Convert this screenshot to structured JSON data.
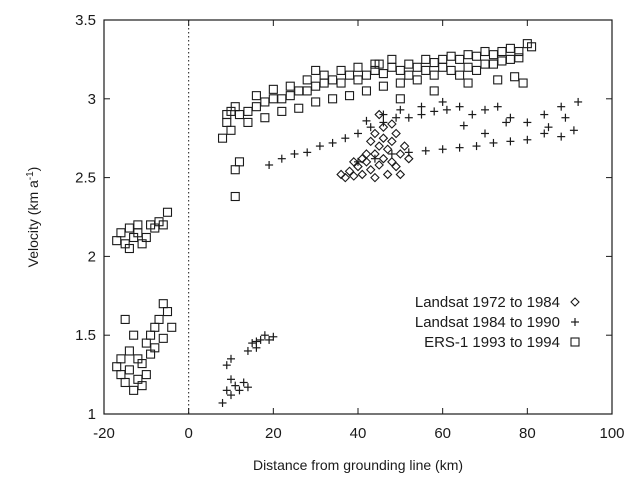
{
  "chart_data": {
    "type": "scatter",
    "xlabel": "Distance from grounding line (km)",
    "ylabel": "Velocity (km a",
    "ylabel_sup": "-1",
    "ylabel_close": ")",
    "xlim": [
      -20,
      100
    ],
    "ylim": [
      1,
      3.5
    ],
    "x_ticks": [
      -20,
      0,
      20,
      40,
      60,
      80,
      100
    ],
    "x_tick_labels": [
      "-20",
      "0",
      "20",
      "40",
      "60",
      "80",
      "100"
    ],
    "y_ticks": [
      1,
      1.5,
      2,
      2.5,
      3,
      3.5
    ],
    "y_tick_labels": [
      "1",
      "1.5",
      "2",
      "2.5",
      "3",
      "3.5"
    ],
    "reference_line_x": 0,
    "legend_position": "lower-right",
    "series": [
      {
        "name": "Landsat 1972 to 1984",
        "marker": "diamond",
        "points": [
          [
            36,
            2.52
          ],
          [
            37,
            2.5
          ],
          [
            38,
            2.54
          ],
          [
            39,
            2.51
          ],
          [
            40,
            2.57
          ],
          [
            41,
            2.52
          ],
          [
            42,
            2.6
          ],
          [
            43,
            2.55
          ],
          [
            44,
            2.65
          ],
          [
            44,
            2.5
          ],
          [
            45,
            2.7
          ],
          [
            45,
            2.58
          ],
          [
            46,
            2.62
          ],
          [
            46,
            2.75
          ],
          [
            47,
            2.52
          ],
          [
            47,
            2.68
          ],
          [
            48,
            2.73
          ],
          [
            48,
            2.6
          ],
          [
            49,
            2.57
          ],
          [
            49,
            2.78
          ],
          [
            50,
            2.65
          ],
          [
            50,
            2.52
          ],
          [
            51,
            2.7
          ],
          [
            52,
            2.62
          ],
          [
            43,
            2.73
          ],
          [
            42,
            2.65
          ],
          [
            41,
            2.62
          ],
          [
            39,
            2.6
          ],
          [
            46,
            2.82
          ],
          [
            45,
            2.9
          ],
          [
            48,
            2.84
          ],
          [
            44,
            2.78
          ]
        ]
      },
      {
        "name": "Landsat 1984 to 1990",
        "marker": "plus",
        "points": [
          [
            8,
            1.07
          ],
          [
            9,
            1.15
          ],
          [
            10,
            1.12
          ],
          [
            11,
            1.18
          ],
          [
            12,
            1.15
          ],
          [
            13,
            1.2
          ],
          [
            14,
            1.17
          ],
          [
            10,
            1.22
          ],
          [
            9,
            1.31
          ],
          [
            10,
            1.35
          ],
          [
            14,
            1.4
          ],
          [
            15,
            1.45
          ],
          [
            16,
            1.42
          ],
          [
            17,
            1.47
          ],
          [
            18,
            1.5
          ],
          [
            19,
            1.47
          ],
          [
            20,
            1.49
          ],
          [
            16,
            1.46
          ],
          [
            19,
            2.58
          ],
          [
            22,
            2.62
          ],
          [
            25,
            2.65
          ],
          [
            28,
            2.66
          ],
          [
            31,
            2.7
          ],
          [
            34,
            2.72
          ],
          [
            37,
            2.75
          ],
          [
            40,
            2.78
          ],
          [
            43,
            2.82
          ],
          [
            46,
            2.85
          ],
          [
            49,
            2.88
          ],
          [
            52,
            2.88
          ],
          [
            55,
            2.9
          ],
          [
            58,
            2.92
          ],
          [
            61,
            2.93
          ],
          [
            64,
            2.95
          ],
          [
            67,
            2.9
          ],
          [
            70,
            2.93
          ],
          [
            73,
            2.95
          ],
          [
            76,
            2.88
          ],
          [
            80,
            2.85
          ],
          [
            84,
            2.9
          ],
          [
            88,
            2.95
          ],
          [
            92,
            2.98
          ],
          [
            40,
            2.6
          ],
          [
            44,
            2.62
          ],
          [
            48,
            2.65
          ],
          [
            52,
            2.66
          ],
          [
            56,
            2.67
          ],
          [
            60,
            2.68
          ],
          [
            64,
            2.69
          ],
          [
            68,
            2.7
          ],
          [
            72,
            2.72
          ],
          [
            76,
            2.73
          ],
          [
            80,
            2.74
          ],
          [
            84,
            2.78
          ],
          [
            88,
            2.76
          ],
          [
            91,
            2.8
          ],
          [
            46,
            2.9
          ],
          [
            50,
            2.93
          ],
          [
            55,
            2.95
          ],
          [
            60,
            2.98
          ],
          [
            65,
            2.83
          ],
          [
            70,
            2.78
          ],
          [
            75,
            2.85
          ],
          [
            85,
            2.82
          ],
          [
            89,
            2.88
          ],
          [
            42,
            2.86
          ]
        ]
      },
      {
        "name": "ERS-1 1993 to 1994",
        "marker": "square",
        "points": [
          [
            -17,
            1.3
          ],
          [
            -16,
            1.25
          ],
          [
            -15,
            1.2
          ],
          [
            -14,
            1.28
          ],
          [
            -13,
            1.15
          ],
          [
            -12,
            1.22
          ],
          [
            -11,
            1.18
          ],
          [
            -10,
            1.25
          ],
          [
            -16,
            1.35
          ],
          [
            -14,
            1.4
          ],
          [
            -12,
            1.35
          ],
          [
            -10,
            1.45
          ],
          [
            -9,
            1.5
          ],
          [
            -8,
            1.55
          ],
          [
            -7,
            1.6
          ],
          [
            -6,
            1.48
          ],
          [
            -5,
            1.65
          ],
          [
            -4,
            1.55
          ],
          [
            -6,
            1.7
          ],
          [
            -8,
            1.42
          ],
          [
            -13,
            1.5
          ],
          [
            -15,
            1.6
          ],
          [
            -11,
            1.32
          ],
          [
            -9,
            1.38
          ],
          [
            -17,
            2.1
          ],
          [
            -16,
            2.15
          ],
          [
            -15,
            2.08
          ],
          [
            -14,
            2.18
          ],
          [
            -13,
            2.12
          ],
          [
            -12,
            2.15
          ],
          [
            -11,
            2.08
          ],
          [
            -10,
            2.12
          ],
          [
            -9,
            2.2
          ],
          [
            -8,
            2.18
          ],
          [
            -7,
            2.22
          ],
          [
            -6,
            2.2
          ],
          [
            -5,
            2.28
          ],
          [
            -14,
            2.05
          ],
          [
            -12,
            2.2
          ],
          [
            8,
            2.75
          ],
          [
            9,
            2.85
          ],
          [
            10,
            2.92
          ],
          [
            10,
            2.8
          ],
          [
            11,
            2.95
          ],
          [
            11,
            2.55
          ],
          [
            12,
            2.6
          ],
          [
            11,
            2.38
          ],
          [
            9,
            2.9
          ],
          [
            12,
            2.9
          ],
          [
            14,
            2.92
          ],
          [
            16,
            2.95
          ],
          [
            18,
            2.98
          ],
          [
            20,
            3.0
          ],
          [
            22,
            3.0
          ],
          [
            24,
            3.02
          ],
          [
            26,
            3.05
          ],
          [
            28,
            3.05
          ],
          [
            30,
            3.08
          ],
          [
            32,
            3.1
          ],
          [
            34,
            3.12
          ],
          [
            36,
            3.1
          ],
          [
            38,
            3.15
          ],
          [
            40,
            3.12
          ],
          [
            42,
            3.15
          ],
          [
            44,
            3.18
          ],
          [
            46,
            3.16
          ],
          [
            48,
            3.2
          ],
          [
            50,
            3.18
          ],
          [
            52,
            3.22
          ],
          [
            54,
            3.2
          ],
          [
            56,
            3.25
          ],
          [
            58,
            3.23
          ],
          [
            60,
            3.25
          ],
          [
            62,
            3.27
          ],
          [
            64,
            3.25
          ],
          [
            66,
            3.28
          ],
          [
            68,
            3.27
          ],
          [
            70,
            3.3
          ],
          [
            72,
            3.28
          ],
          [
            74,
            3.3
          ],
          [
            76,
            3.32
          ],
          [
            78,
            3.3
          ],
          [
            80,
            3.35
          ],
          [
            81,
            3.33
          ],
          [
            14,
            2.85
          ],
          [
            18,
            2.88
          ],
          [
            22,
            2.92
          ],
          [
            26,
            2.94
          ],
          [
            30,
            2.98
          ],
          [
            34,
            3.0
          ],
          [
            38,
            3.02
          ],
          [
            42,
            3.05
          ],
          [
            46,
            3.08
          ],
          [
            50,
            3.1
          ],
          [
            54,
            3.12
          ],
          [
            58,
            3.15
          ],
          [
            62,
            3.18
          ],
          [
            66,
            3.2
          ],
          [
            70,
            3.22
          ],
          [
            74,
            3.24
          ],
          [
            78,
            3.26
          ],
          [
            16,
            3.02
          ],
          [
            20,
            3.06
          ],
          [
            24,
            3.08
          ],
          [
            28,
            3.12
          ],
          [
            32,
            3.15
          ],
          [
            36,
            3.18
          ],
          [
            40,
            3.2
          ],
          [
            44,
            3.22
          ],
          [
            48,
            3.25
          ],
          [
            52,
            3.15
          ],
          [
            56,
            3.18
          ],
          [
            60,
            3.2
          ],
          [
            64,
            3.15
          ],
          [
            68,
            3.18
          ],
          [
            72,
            3.22
          ],
          [
            76,
            3.25
          ],
          [
            79,
            3.1
          ],
          [
            77,
            3.14
          ],
          [
            73,
            3.12
          ],
          [
            66,
            3.1
          ],
          [
            58,
            3.05
          ],
          [
            50,
            3.0
          ],
          [
            45,
            3.22
          ],
          [
            30,
            3.18
          ]
        ]
      }
    ]
  }
}
